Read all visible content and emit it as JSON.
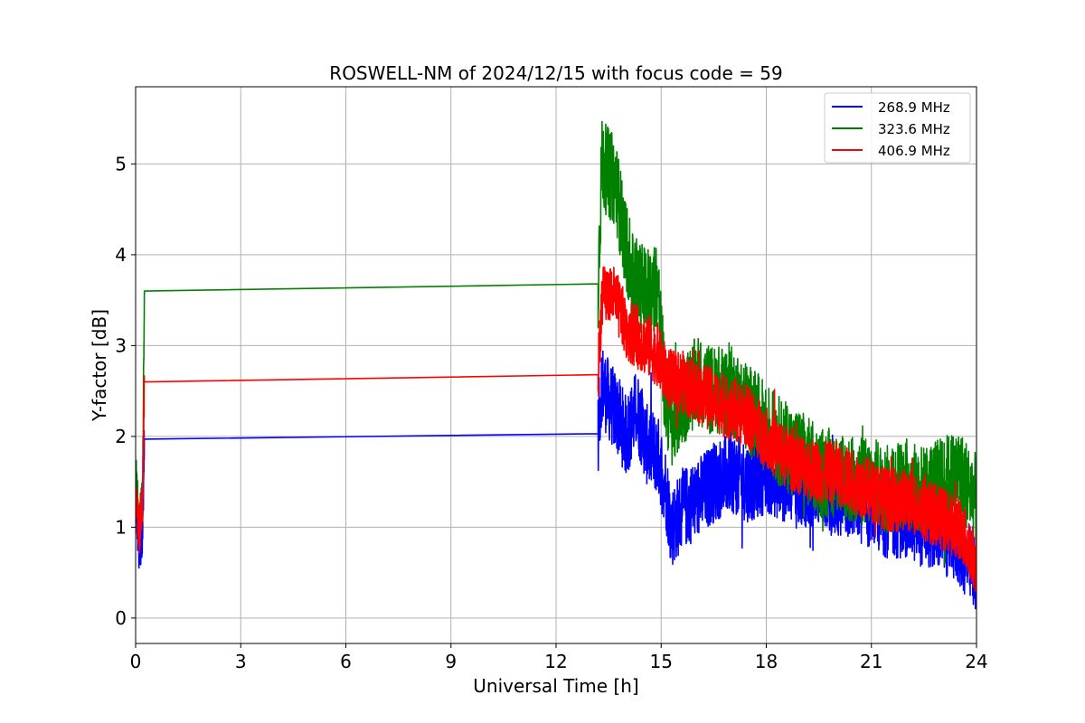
{
  "chart_data": {
    "type": "line",
    "title": "ROSWELL-NM of 2024/12/15 with focus code = 59",
    "xlabel": "Universal Time [h]",
    "ylabel": "Y-factor [dB]",
    "xlim": [
      0,
      24
    ],
    "ylim": [
      -0.28,
      5.85
    ],
    "xticks": [
      0,
      3,
      6,
      9,
      12,
      15,
      18,
      21,
      24
    ],
    "yticks": [
      0,
      1,
      2,
      3,
      4,
      5
    ],
    "xtick_labels": [
      "0",
      "3",
      "6",
      "9",
      "12",
      "15",
      "18",
      "21",
      "24"
    ],
    "ytick_labels": [
      "0",
      "1",
      "2",
      "3",
      "4",
      "5"
    ],
    "grid": true,
    "legend": "top-right",
    "series": [
      {
        "name": "268.9 MHz",
        "color": "#0000ff",
        "x": [
          0.0,
          0.05,
          0.1,
          0.15,
          0.2,
          0.25,
          13.2,
          13.3,
          13.5,
          13.8,
          14.0,
          14.3,
          14.6,
          14.9,
          15.1,
          15.3,
          15.6,
          16.0,
          16.5,
          17.0,
          17.5,
          18.0,
          18.5,
          19.0,
          19.5,
          20.0,
          20.5,
          21.0,
          21.5,
          22.0,
          22.5,
          23.0,
          23.5,
          24.0
        ],
        "y": [
          1.4,
          1.0,
          0.7,
          0.8,
          1.0,
          1.97,
          2.03,
          2.6,
          2.4,
          2.2,
          2.0,
          2.3,
          1.9,
          1.8,
          1.5,
          1.0,
          1.2,
          1.3,
          1.5,
          1.6,
          1.5,
          1.6,
          1.5,
          1.4,
          1.5,
          1.3,
          1.3,
          1.2,
          1.1,
          1.1,
          1.0,
          0.95,
          0.8,
          0.45
        ]
      },
      {
        "name": "323.6 MHz",
        "color": "#008000",
        "x": [
          0.0,
          0.05,
          0.1,
          0.15,
          0.2,
          0.25,
          13.2,
          13.3,
          13.5,
          13.7,
          13.9,
          14.2,
          14.6,
          14.9,
          15.1,
          15.3,
          15.6,
          16.0,
          16.5,
          17.0,
          17.5,
          18.0,
          18.5,
          19.0,
          19.5,
          20.0,
          20.5,
          21.0,
          21.5,
          22.0,
          22.5,
          23.0,
          23.5,
          24.0
        ],
        "y": [
          1.6,
          1.3,
          1.0,
          1.2,
          1.4,
          3.6,
          3.68,
          5.0,
          4.9,
          4.8,
          4.3,
          3.7,
          3.6,
          3.7,
          2.5,
          2.1,
          2.4,
          2.6,
          2.5,
          2.5,
          2.3,
          2.1,
          1.9,
          1.8,
          1.6,
          1.6,
          1.5,
          1.5,
          1.4,
          1.5,
          1.4,
          1.5,
          1.6,
          1.3
        ]
      },
      {
        "name": "406.9 MHz",
        "color": "#ff0000",
        "x": [
          0.0,
          0.05,
          0.1,
          0.15,
          0.2,
          0.25,
          13.2,
          13.3,
          13.5,
          13.7,
          14.0,
          14.3,
          14.6,
          14.9,
          15.1,
          15.3,
          15.6,
          16.0,
          16.5,
          17.0,
          17.5,
          18.0,
          18.5,
          19.0,
          19.5,
          20.0,
          20.5,
          21.0,
          21.5,
          22.0,
          22.5,
          23.0,
          23.5,
          24.0
        ],
        "y": [
          1.3,
          1.1,
          0.95,
          1.1,
          1.3,
          2.6,
          2.68,
          3.5,
          3.6,
          3.5,
          3.2,
          3.1,
          3.0,
          2.9,
          2.7,
          2.6,
          2.6,
          2.5,
          2.4,
          2.3,
          2.2,
          2.0,
          1.8,
          1.7,
          1.6,
          1.6,
          1.5,
          1.4,
          1.3,
          1.3,
          1.2,
          1.1,
          1.0,
          0.6
        ]
      }
    ]
  }
}
